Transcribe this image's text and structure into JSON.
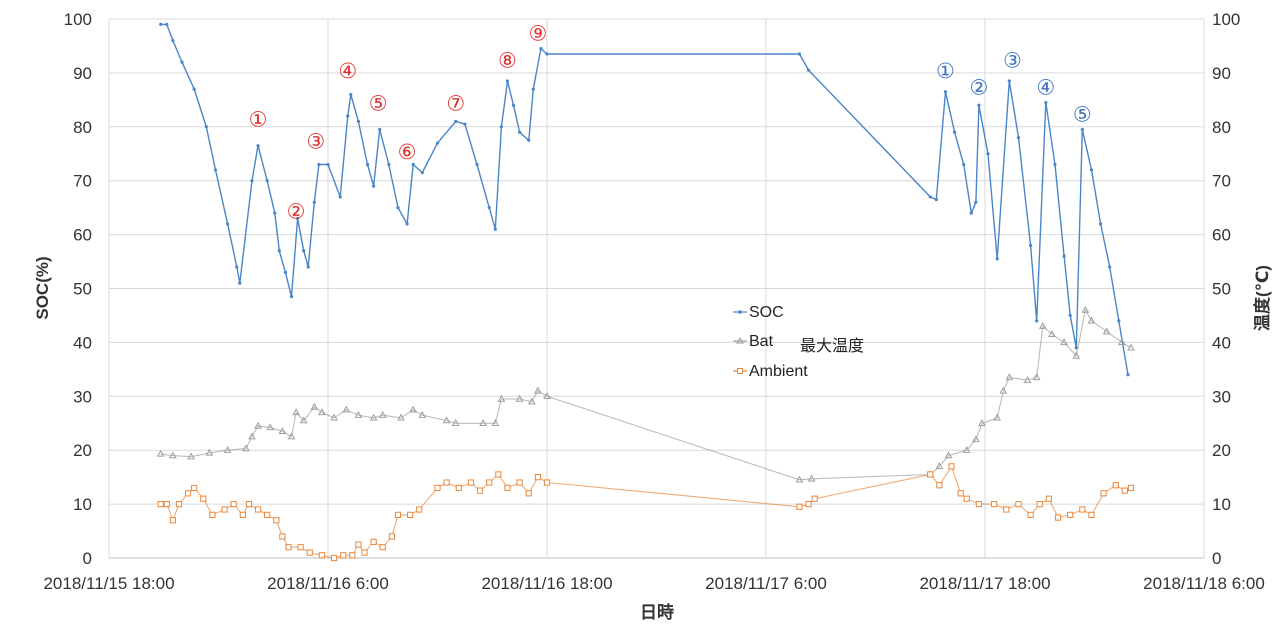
{
  "chart_data": {
    "type": "line",
    "xlabel": "日時",
    "ylabel_left": "SOC(%)",
    "ylabel_right": "温度(℃)",
    "x_range": [
      "2018-11-15T18:00",
      "2018-11-18T06:00"
    ],
    "x_ticks": [
      "2018/11/15 18:00",
      "2018/11/16 6:00",
      "2018/11/16 18:00",
      "2018/11/17 6:00",
      "2018/11/17 18:00",
      "2018/11/18 6:00"
    ],
    "y_left_range": [
      0,
      100
    ],
    "y_right_range": [
      0,
      100
    ],
    "y_ticks": [
      "0",
      "10",
      "20",
      "30",
      "40",
      "50",
      "60",
      "70",
      "80",
      "90",
      "100"
    ],
    "grid": true,
    "legend_position": "center",
    "legend_extra": "最大温度",
    "series": [
      {
        "name": "SOC",
        "axis": "left",
        "color": "#4a86c6",
        "marker": "dot",
        "points": [
          [
            "2018-11-15T20:50",
            99
          ],
          [
            "2018-11-15T21:10",
            99
          ],
          [
            "2018-11-15T21:30",
            96
          ],
          [
            "2018-11-15T22:00",
            92
          ],
          [
            "2018-11-15T22:40",
            87
          ],
          [
            "2018-11-15T23:20",
            80
          ],
          [
            "2018-11-15T23:50",
            72
          ],
          [
            "2018-11-16T00:30",
            62
          ],
          [
            "2018-11-16T01:00",
            54
          ],
          [
            "2018-11-16T01:10",
            51
          ],
          [
            "2018-11-16T01:50",
            70
          ],
          [
            "2018-11-16T02:10",
            76.5
          ],
          [
            "2018-11-16T02:40",
            70
          ],
          [
            "2018-11-16T03:05",
            64
          ],
          [
            "2018-11-16T03:20",
            57
          ],
          [
            "2018-11-16T03:40",
            53
          ],
          [
            "2018-11-16T04:00",
            48.5
          ],
          [
            "2018-11-16T04:20",
            63
          ],
          [
            "2018-11-16T04:40",
            57
          ],
          [
            "2018-11-16T04:55",
            54
          ],
          [
            "2018-11-16T05:15",
            66
          ],
          [
            "2018-11-16T05:30",
            73
          ],
          [
            "2018-11-16T06:00",
            73
          ],
          [
            "2018-11-16T06:40",
            67
          ],
          [
            "2018-11-16T07:05",
            82
          ],
          [
            "2018-11-16T07:15",
            86
          ],
          [
            "2018-11-16T07:40",
            81
          ],
          [
            "2018-11-16T08:10",
            73
          ],
          [
            "2018-11-16T08:30",
            69
          ],
          [
            "2018-11-16T08:50",
            79.5
          ],
          [
            "2018-11-16T09:20",
            73
          ],
          [
            "2018-11-16T09:50",
            65
          ],
          [
            "2018-11-16T10:20",
            62
          ],
          [
            "2018-11-16T10:40",
            73
          ],
          [
            "2018-11-16T11:10",
            71.5
          ],
          [
            "2018-11-16T12:00",
            77
          ],
          [
            "2018-11-16T13:00",
            81
          ],
          [
            "2018-11-16T13:30",
            80.5
          ],
          [
            "2018-11-16T14:10",
            73
          ],
          [
            "2018-11-16T14:50",
            65
          ],
          [
            "2018-11-16T15:10",
            61
          ],
          [
            "2018-11-16T15:30",
            80
          ],
          [
            "2018-11-16T15:50",
            88.5
          ],
          [
            "2018-11-16T16:10",
            84
          ],
          [
            "2018-11-16T16:30",
            79
          ],
          [
            "2018-11-16T17:00",
            77.5
          ],
          [
            "2018-11-16T17:15",
            87
          ],
          [
            "2018-11-16T17:40",
            94.5
          ],
          [
            "2018-11-16T18:00",
            93.5
          ],
          [
            "2018-11-17T07:50",
            93.5
          ],
          [
            "2018-11-17T08:20",
            90.5
          ],
          [
            "2018-11-17T15:00",
            67
          ],
          [
            "2018-11-17T15:20",
            66.5
          ],
          [
            "2018-11-17T15:50",
            86.5
          ],
          [
            "2018-11-17T16:20",
            79
          ],
          [
            "2018-11-17T16:50",
            73
          ],
          [
            "2018-11-17T17:15",
            64
          ],
          [
            "2018-11-17T17:30",
            66
          ],
          [
            "2018-11-17T17:40",
            84
          ],
          [
            "2018-11-17T18:10",
            75
          ],
          [
            "2018-11-17T18:40",
            55.5
          ],
          [
            "2018-11-17T19:20",
            88.5
          ],
          [
            "2018-11-17T19:50",
            78
          ],
          [
            "2018-11-17T20:30",
            58
          ],
          [
            "2018-11-17T20:50",
            44
          ],
          [
            "2018-11-17T21:20",
            84.5
          ],
          [
            "2018-11-17T21:50",
            73
          ],
          [
            "2018-11-17T22:20",
            56
          ],
          [
            "2018-11-17T22:40",
            45
          ],
          [
            "2018-11-17T23:00",
            39
          ],
          [
            "2018-11-17T23:20",
            79.5
          ],
          [
            "2018-11-17T23:50",
            72
          ],
          [
            "2018-11-18T00:20",
            62
          ],
          [
            "2018-11-18T00:50",
            54
          ],
          [
            "2018-11-18T01:20",
            44
          ],
          [
            "2018-11-18T01:50",
            34
          ]
        ]
      },
      {
        "name": "Bat",
        "axis": "right",
        "color": "#9e9e9e",
        "marker": "triangle",
        "points": [
          [
            "2018-11-15T20:50",
            19.3
          ],
          [
            "2018-11-15T21:30",
            19
          ],
          [
            "2018-11-15T22:30",
            18.8
          ],
          [
            "2018-11-15T23:30",
            19.5
          ],
          [
            "2018-11-16T00:30",
            20
          ],
          [
            "2018-11-16T01:30",
            20.3
          ],
          [
            "2018-11-16T01:50",
            22.5
          ],
          [
            "2018-11-16T02:10",
            24.5
          ],
          [
            "2018-11-16T02:50",
            24.2
          ],
          [
            "2018-11-16T03:30",
            23.5
          ],
          [
            "2018-11-16T04:00",
            22.5
          ],
          [
            "2018-11-16T04:15",
            27
          ],
          [
            "2018-11-16T04:40",
            25.5
          ],
          [
            "2018-11-16T05:15",
            28
          ],
          [
            "2018-11-16T05:40",
            27
          ],
          [
            "2018-11-16T06:20",
            26
          ],
          [
            "2018-11-16T07:00",
            27.5
          ],
          [
            "2018-11-16T07:40",
            26.5
          ],
          [
            "2018-11-16T08:30",
            26
          ],
          [
            "2018-11-16T09:00",
            26.5
          ],
          [
            "2018-11-16T10:00",
            26
          ],
          [
            "2018-11-16T10:40",
            27.5
          ],
          [
            "2018-11-16T11:10",
            26.5
          ],
          [
            "2018-11-16T12:30",
            25.5
          ],
          [
            "2018-11-16T13:00",
            25
          ],
          [
            "2018-11-16T14:30",
            25
          ],
          [
            "2018-11-16T15:10",
            25
          ],
          [
            "2018-11-16T15:30",
            29.5
          ],
          [
            "2018-11-16T16:30",
            29.5
          ],
          [
            "2018-11-16T17:10",
            29
          ],
          [
            "2018-11-16T17:30",
            31
          ],
          [
            "2018-11-16T18:00",
            30
          ],
          [
            "2018-11-17T07:50",
            14.5
          ],
          [
            "2018-11-17T08:30",
            14.7
          ],
          [
            "2018-11-17T15:00",
            15.5
          ],
          [
            "2018-11-17T15:30",
            17
          ],
          [
            "2018-11-17T16:00",
            19
          ],
          [
            "2018-11-17T17:00",
            20
          ],
          [
            "2018-11-17T17:30",
            22
          ],
          [
            "2018-11-17T17:50",
            25
          ],
          [
            "2018-11-17T18:40",
            26
          ],
          [
            "2018-11-17T19:00",
            31
          ],
          [
            "2018-11-17T19:20",
            33.5
          ],
          [
            "2018-11-17T20:20",
            33
          ],
          [
            "2018-11-17T20:50",
            33.5
          ],
          [
            "2018-11-17T21:10",
            43
          ],
          [
            "2018-11-17T21:40",
            41.5
          ],
          [
            "2018-11-17T22:20",
            40
          ],
          [
            "2018-11-17T23:00",
            37.5
          ],
          [
            "2018-11-17T23:30",
            46
          ],
          [
            "2018-11-17T23:50",
            44
          ],
          [
            "2018-11-18T00:40",
            42
          ],
          [
            "2018-11-18T01:30",
            40
          ],
          [
            "2018-11-18T02:00",
            39
          ]
        ]
      },
      {
        "name": "Ambient",
        "axis": "right",
        "color": "#e8873a",
        "marker": "square",
        "points": [
          [
            "2018-11-15T20:50",
            10
          ],
          [
            "2018-11-15T21:10",
            10
          ],
          [
            "2018-11-15T21:30",
            7
          ],
          [
            "2018-11-15T21:50",
            10
          ],
          [
            "2018-11-15T22:20",
            12
          ],
          [
            "2018-11-15T22:40",
            13
          ],
          [
            "2018-11-15T23:10",
            11
          ],
          [
            "2018-11-15T23:40",
            8
          ],
          [
            "2018-11-16T00:20",
            9
          ],
          [
            "2018-11-16T00:50",
            10
          ],
          [
            "2018-11-16T01:20",
            8
          ],
          [
            "2018-11-16T01:40",
            10
          ],
          [
            "2018-11-16T02:10",
            9
          ],
          [
            "2018-11-16T02:40",
            8
          ],
          [
            "2018-11-16T03:10",
            7
          ],
          [
            "2018-11-16T03:30",
            4
          ],
          [
            "2018-11-16T03:50",
            2
          ],
          [
            "2018-11-16T04:30",
            2
          ],
          [
            "2018-11-16T05:00",
            1
          ],
          [
            "2018-11-16T05:40",
            0.5
          ],
          [
            "2018-11-16T06:20",
            0
          ],
          [
            "2018-11-16T06:50",
            0.5
          ],
          [
            "2018-11-16T07:20",
            0.5
          ],
          [
            "2018-11-16T07:40",
            2.5
          ],
          [
            "2018-11-16T08:00",
            1
          ],
          [
            "2018-11-16T08:30",
            3
          ],
          [
            "2018-11-16T09:00",
            2
          ],
          [
            "2018-11-16T09:30",
            4
          ],
          [
            "2018-11-16T09:50",
            8
          ],
          [
            "2018-11-16T10:30",
            8
          ],
          [
            "2018-11-16T11:00",
            9
          ],
          [
            "2018-11-16T12:00",
            13
          ],
          [
            "2018-11-16T12:30",
            14
          ],
          [
            "2018-11-16T13:10",
            13
          ],
          [
            "2018-11-16T13:50",
            14
          ],
          [
            "2018-11-16T14:20",
            12.5
          ],
          [
            "2018-11-16T14:50",
            14
          ],
          [
            "2018-11-16T15:20",
            15.5
          ],
          [
            "2018-11-16T15:50",
            13
          ],
          [
            "2018-11-16T16:30",
            14
          ],
          [
            "2018-11-16T17:00",
            12
          ],
          [
            "2018-11-16T17:30",
            15
          ],
          [
            "2018-11-16T18:00",
            14
          ],
          [
            "2018-11-17T07:50",
            9.5
          ],
          [
            "2018-11-17T08:20",
            10
          ],
          [
            "2018-11-17T08:40",
            11
          ],
          [
            "2018-11-17T15:00",
            15.5
          ],
          [
            "2018-11-17T15:30",
            13.5
          ],
          [
            "2018-11-17T16:10",
            17
          ],
          [
            "2018-11-17T16:40",
            12
          ],
          [
            "2018-11-17T17:00",
            11
          ],
          [
            "2018-11-17T17:40",
            10
          ],
          [
            "2018-11-17T18:30",
            10
          ],
          [
            "2018-11-17T19:10",
            9
          ],
          [
            "2018-11-17T19:50",
            10
          ],
          [
            "2018-11-17T20:30",
            8
          ],
          [
            "2018-11-17T21:00",
            10
          ],
          [
            "2018-11-17T21:30",
            11
          ],
          [
            "2018-11-17T22:00",
            7.5
          ],
          [
            "2018-11-17T22:40",
            8
          ],
          [
            "2018-11-17T23:20",
            9
          ],
          [
            "2018-11-17T23:50",
            8
          ],
          [
            "2018-11-18T00:30",
            12
          ],
          [
            "2018-11-18T01:10",
            13.5
          ],
          [
            "2018-11-18T01:40",
            12.5
          ],
          [
            "2018-11-18T02:00",
            13
          ]
        ]
      }
    ],
    "annotations": [
      {
        "label": "①",
        "x": "2018-11-16T02:10",
        "y": 81.5,
        "color": "red"
      },
      {
        "label": "②",
        "x": "2018-11-16T04:15",
        "y": 64.5,
        "color": "red"
      },
      {
        "label": "③",
        "x": "2018-11-16T05:20",
        "y": 77.5,
        "color": "red"
      },
      {
        "label": "④",
        "x": "2018-11-16T07:05",
        "y": 90.5,
        "color": "red"
      },
      {
        "label": "⑤",
        "x": "2018-11-16T08:45",
        "y": 84.5,
        "color": "red"
      },
      {
        "label": "⑥",
        "x": "2018-11-16T10:20",
        "y": 75.5,
        "color": "red"
      },
      {
        "label": "⑦",
        "x": "2018-11-16T13:00",
        "y": 84.5,
        "color": "red"
      },
      {
        "label": "⑧",
        "x": "2018-11-16T15:50",
        "y": 92.5,
        "color": "red"
      },
      {
        "label": "⑨",
        "x": "2018-11-16T17:30",
        "y": 97.5,
        "color": "red"
      },
      {
        "label": "①",
        "x": "2018-11-17T15:50",
        "y": 90.5,
        "color": "blue"
      },
      {
        "label": "②",
        "x": "2018-11-17T17:40",
        "y": 87.5,
        "color": "blue"
      },
      {
        "label": "③",
        "x": "2018-11-17T19:30",
        "y": 92.5,
        "color": "blue"
      },
      {
        "label": "④",
        "x": "2018-11-17T21:20",
        "y": 87.5,
        "color": "blue"
      },
      {
        "label": "⑤",
        "x": "2018-11-17T23:20",
        "y": 82.5,
        "color": "blue"
      }
    ]
  }
}
